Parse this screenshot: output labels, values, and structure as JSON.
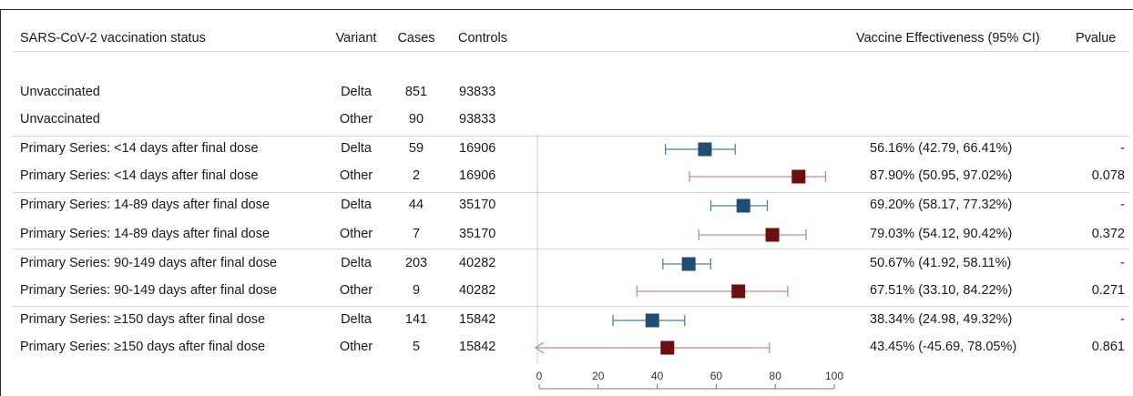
{
  "header": {
    "status": "SARS-CoV-2 vaccination status",
    "variant": "Variant",
    "cases": "Cases",
    "controls": "Controls",
    "ve": "Vaccine Effectiveness (95% CI)",
    "pvalue": "Pvalue"
  },
  "rows": [
    {
      "status": "Unvaccinated",
      "variant": "Delta",
      "cases": "851",
      "controls": "93833",
      "ve_text": "",
      "p_text": ""
    },
    {
      "status": "Unvaccinated",
      "variant": "Other",
      "cases": "90",
      "controls": "93833",
      "ve_text": "",
      "p_text": ""
    },
    {
      "status": "Primary Series: <14 days after final dose",
      "variant": "Delta",
      "cases": "59",
      "controls": "16906",
      "ve_text": "56.16% (42.79, 66.41%)",
      "p_text": "-"
    },
    {
      "status": "Primary Series: <14 days after final dose",
      "variant": "Other",
      "cases": "2",
      "controls": "16906",
      "ve_text": "87.90% (50.95, 97.02%)",
      "p_text": "0.078"
    },
    {
      "status": "Primary Series: 14-89 days after final dose",
      "variant": "Delta",
      "cases": "44",
      "controls": "35170",
      "ve_text": "69.20% (58.17, 77.32%)",
      "p_text": "-"
    },
    {
      "status": "Primary Series: 14-89 days after final dose",
      "variant": "Other",
      "cases": "7",
      "controls": "35170",
      "ve_text": "79.03% (54.12, 90.42%)",
      "p_text": "0.372"
    },
    {
      "status": "Primary Series: 90-149 days after final dose",
      "variant": "Delta",
      "cases": "203",
      "controls": "40282",
      "ve_text": "50.67% (41.92, 58.11%)",
      "p_text": "-"
    },
    {
      "status": "Primary Series: 90-149 days after final dose",
      "variant": "Other",
      "cases": "9",
      "controls": "40282",
      "ve_text": "67.51% (33.10, 84.22%)",
      "p_text": "0.271"
    },
    {
      "status": "Primary Series: ≥150 days after final dose",
      "variant": "Delta",
      "cases": "141",
      "controls": "15842",
      "ve_text": "38.34% (24.98, 49.32%)",
      "p_text": "-"
    },
    {
      "status": "Primary Series: ≥150 days after final dose",
      "variant": "Other",
      "cases": "5",
      "controls": "15842",
      "ve_text": "43.45% (-45.69, 78.05%)",
      "p_text": "0.861"
    }
  ],
  "chart_data": {
    "type": "scatter",
    "xlim": [
      0,
      100
    ],
    "x_ticks": [
      0,
      20,
      40,
      60,
      80,
      100
    ],
    "points": [
      {
        "variant": "Delta",
        "estimate": 56.16,
        "lower": 42.79,
        "upper": 66.41
      },
      {
        "variant": "Other",
        "estimate": 87.9,
        "lower": 50.95,
        "upper": 97.02
      },
      {
        "variant": "Delta",
        "estimate": 69.2,
        "lower": 58.17,
        "upper": 77.32
      },
      {
        "variant": "Other",
        "estimate": 79.03,
        "lower": 54.12,
        "upper": 90.42
      },
      {
        "variant": "Delta",
        "estimate": 50.67,
        "lower": 41.92,
        "upper": 58.11
      },
      {
        "variant": "Other",
        "estimate": 67.51,
        "lower": 33.1,
        "upper": 84.22
      },
      {
        "variant": "Delta",
        "estimate": 38.34,
        "lower": 24.98,
        "upper": 49.32
      },
      {
        "variant": "Other",
        "estimate": 43.45,
        "lower": -45.69,
        "upper": 78.05
      }
    ],
    "colors": {
      "Delta": {
        "marker": "#1f4e74",
        "line": "#4f7fa8"
      },
      "Other": {
        "marker": "#6e0d0d",
        "line": "#c98a8e"
      }
    }
  }
}
